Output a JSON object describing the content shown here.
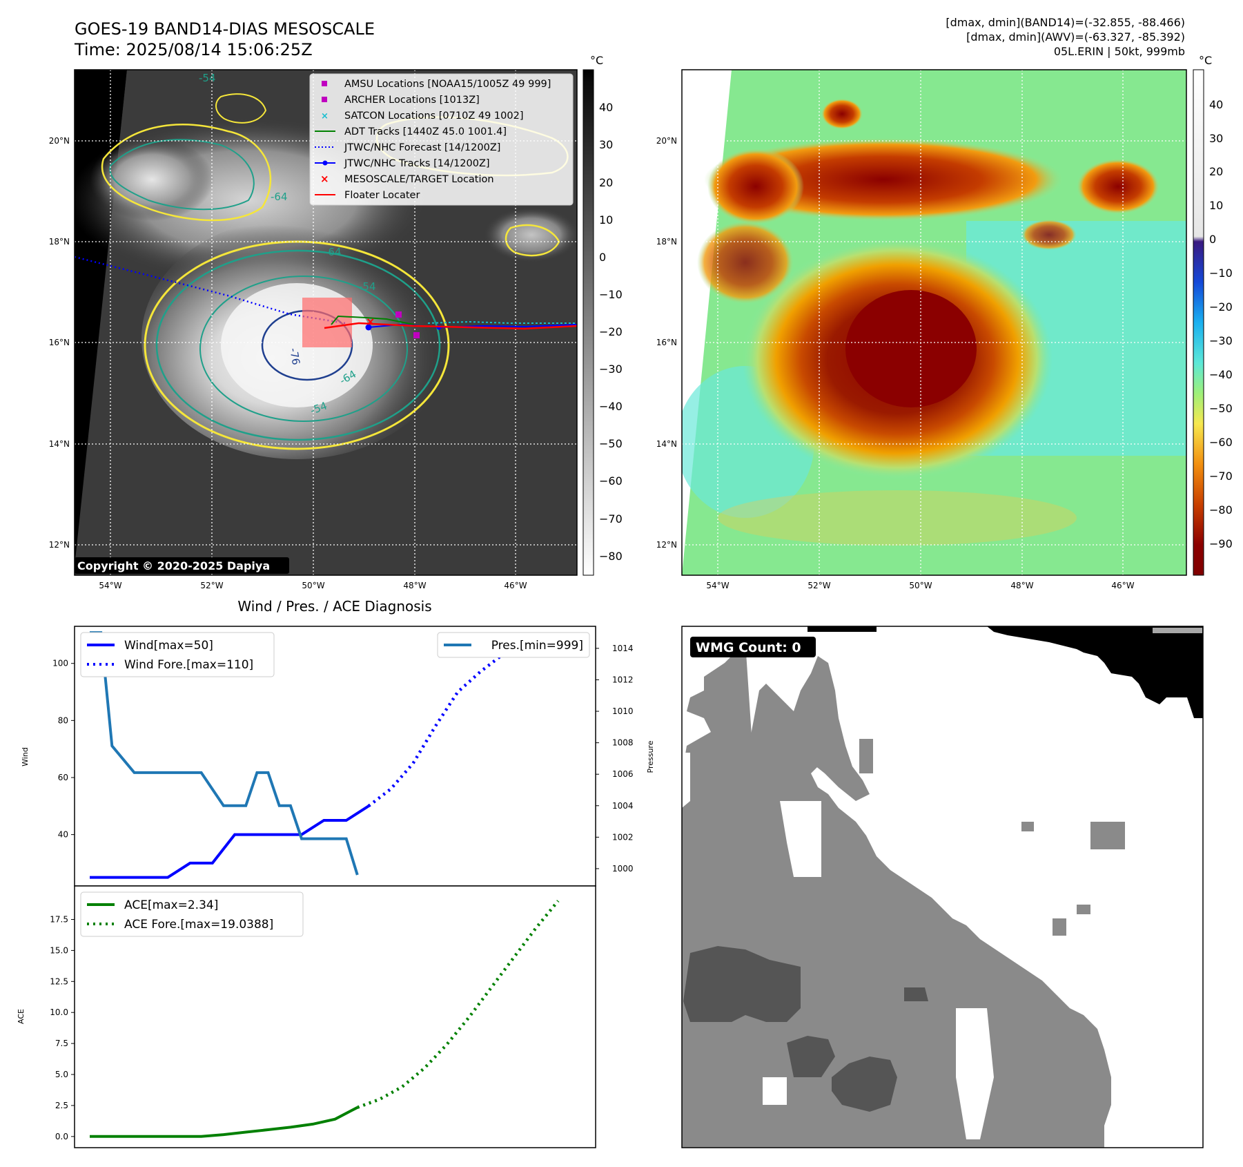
{
  "header": {
    "title": "GOES-19 BAND14-DIAS MESOSCALE",
    "time": "Time: 2025/08/14 15:06:25Z",
    "stats_band14": "[dmax, dmin](BAND14)=(-32.855, -88.466)",
    "stats_awv": "[dmax, dmin](AWV)=(-63.327, -85.392)",
    "storm": "05L.ERIN | 50kt, 999mb"
  },
  "maps": {
    "lat_labels": [
      "12°N",
      "14°N",
      "16°N",
      "18°N",
      "20°N"
    ],
    "lon_labels": [
      "54°W",
      "52°W",
      "50°W",
      "48°W",
      "46°W"
    ],
    "copyright": "Copyright © 2020-2025 Dapiya",
    "contour_labels": [
      "-54",
      "-64",
      "-76",
      "-64",
      "-54",
      "-64",
      "-54"
    ],
    "legend": [
      {
        "label": "AMSU Locations [NOAA15/1005Z 49 999]",
        "marker": "square",
        "color": "#c000c0"
      },
      {
        "label": "ARCHER Locations [1013Z]",
        "marker": "square",
        "color": "#c000c0"
      },
      {
        "label": "SATCON Locations [0710Z 49 1002]",
        "marker": "x",
        "color": "#17becf"
      },
      {
        "label": "ADT Tracks [1440Z 45.0 1001.4]",
        "marker": "line",
        "color": "#008000"
      },
      {
        "label": "JTWC/NHC Forecast [14/1200Z]",
        "marker": "dotted",
        "color": "#0000ff"
      },
      {
        "label": "JTWC/NHC Tracks [14/1200Z]",
        "marker": "line-dot",
        "color": "#0000ff"
      },
      {
        "label": "MESOSCALE/TARGET Location",
        "marker": "x",
        "color": "#ff0000"
      },
      {
        "label": "Floater Locater",
        "marker": "line",
        "color": "#ff0000"
      }
    ],
    "left_colorbar": {
      "unit": "°C",
      "ticks": [
        "40",
        "30",
        "20",
        "10",
        "0",
        "−10",
        "−20",
        "−30",
        "−40",
        "−50",
        "−60",
        "−70",
        "−80"
      ]
    },
    "right_colorbar": {
      "unit": "°C",
      "ticks": [
        "40",
        "30",
        "20",
        "10",
        "0",
        "−10",
        "−20",
        "−30",
        "−40",
        "−50",
        "−60",
        "−70",
        "−80",
        "−90"
      ]
    },
    "colors": {
      "track_blue": "#0000ff",
      "adt_green": "#008000",
      "target_red": "#ff0000",
      "contour_yellow": "#f5e63a",
      "contour_teal": "#1fa08a",
      "contour_navy": "#1f3f8f"
    }
  },
  "chart_data": [
    {
      "type": "line",
      "title": "Wind / Pres. / ACE Diagnosis",
      "ylabel": "Wind",
      "y2label": "Pressure",
      "ylim": [
        22,
        113
      ],
      "y2lim": [
        998.9,
        1015.4
      ],
      "yticks": [
        "40",
        "60",
        "80",
        "100"
      ],
      "y2ticks": [
        "1000",
        "1002",
        "1004",
        "1006",
        "1008",
        "1010",
        "1012",
        "1014"
      ],
      "series": [
        {
          "name": "Wind[max=50]",
          "color": "#0000ff",
          "style": "solid",
          "axis": "left",
          "x": [
            0,
            7,
            9,
            11,
            13,
            15,
            17,
            19,
            21,
            23,
            25
          ],
          "y": [
            25,
            25,
            30,
            30,
            40,
            40,
            40,
            40,
            45,
            45,
            50
          ]
        },
        {
          "name": "Wind Fore.[max=110]",
          "color": "#0000ff",
          "style": "dotted",
          "axis": "left",
          "x": [
            25,
            27,
            29,
            31,
            33,
            35,
            37,
            39,
            41
          ],
          "y": [
            50,
            56,
            65,
            78,
            90,
            97,
            103,
            104,
            105
          ]
        },
        {
          "name": "Pres.[min=999]",
          "color": "#1f77b4",
          "style": "solid",
          "axis": "right",
          "x": [
            0,
            1,
            2,
            4,
            8,
            10,
            12,
            14,
            15,
            16,
            17,
            18,
            19,
            21,
            23,
            24
          ],
          "y": [
            1015,
            1015,
            1007.8,
            1006.1,
            1006.1,
            1006.1,
            1004,
            1004,
            1006.1,
            1006.1,
            1004,
            1004,
            1001.9,
            1001.9,
            1001.9,
            999.6
          ]
        }
      ]
    },
    {
      "type": "line",
      "ylabel": "ACE",
      "ylim": [
        -0.9,
        20.2
      ],
      "yticks": [
        "0.0",
        "2.5",
        "5.0",
        "7.5",
        "10.0",
        "12.5",
        "15.0",
        "17.5"
      ],
      "series": [
        {
          "name": "ACE[max=2.34]",
          "color": "#008000",
          "style": "solid",
          "x": [
            0,
            5,
            8,
            10,
            12,
            14,
            16,
            18,
            20,
            22,
            24
          ],
          "y": [
            0,
            0,
            0,
            0,
            0.15,
            0.35,
            0.55,
            0.75,
            1.0,
            1.4,
            2.34
          ]
        },
        {
          "name": "ACE Fore.[max=19.0388]",
          "color": "#008000",
          "style": "dotted",
          "x": [
            24,
            26,
            28,
            30,
            32,
            34,
            36,
            38,
            40,
            42
          ],
          "y": [
            2.34,
            3.0,
            4.0,
            5.5,
            7.4,
            9.6,
            12.0,
            14.4,
            16.8,
            19.0
          ]
        }
      ]
    }
  ],
  "wmg": {
    "count_label": "WMG Count: 0"
  }
}
